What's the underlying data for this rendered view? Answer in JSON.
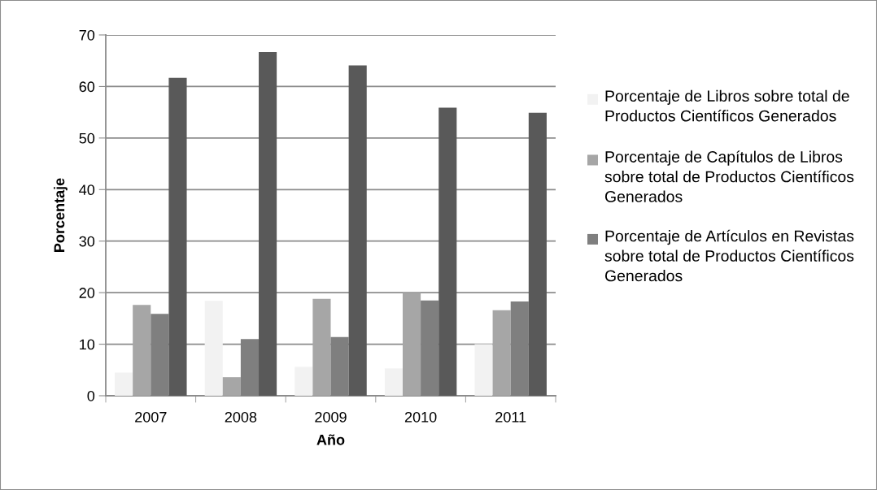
{
  "chart_data": {
    "type": "bar",
    "xlabel": "Año",
    "ylabel": "Porcentaje",
    "categories": [
      "2007",
      "2008",
      "2009",
      "2010",
      "2011"
    ],
    "series": [
      {
        "name": "Porcentaje de Libros sobre total de Productos Científicos Generados",
        "color": "#f2f2f2",
        "values": [
          4.5,
          18.4,
          5.6,
          5.3,
          10.0
        ]
      },
      {
        "name": "Porcentaje de Capítulos de Libros sobre total de Productos Científicos Generados",
        "color": "#a6a6a6",
        "values": [
          17.6,
          3.6,
          18.8,
          20.0,
          16.6
        ]
      },
      {
        "name": "Porcentaje de Artículos en Revistas sobre total de Productos Científicos Generados",
        "color": "#7f7f7f",
        "values": [
          15.9,
          11.0,
          11.4,
          18.5,
          18.3
        ]
      },
      {
        "color": "#595959",
        "values": [
          61.7,
          66.7,
          64.1,
          55.9,
          54.9
        ]
      }
    ],
    "ylim": [
      0,
      70
    ],
    "yticks": [
      0,
      10,
      20,
      30,
      40,
      50,
      60,
      70
    ],
    "grid": "y",
    "legend": "right"
  }
}
